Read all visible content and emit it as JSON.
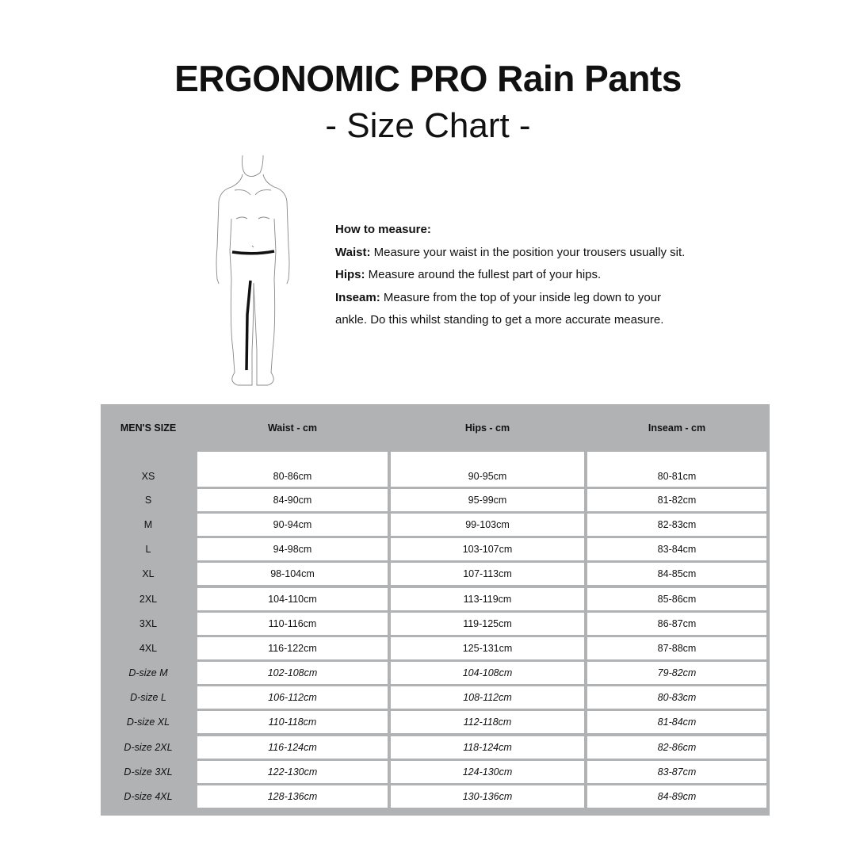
{
  "title": "ERGONOMIC PRO Rain Pants",
  "subtitle": "-  Size Chart -",
  "how_to": {
    "heading": "How to measure:",
    "waist_label": "Waist:",
    "waist_text": " Measure your waist in the position your trousers usually sit.",
    "hips_label": "Hips:",
    "hips_text": " Measure around the fullest part of your hips.",
    "inseam_label": "Inseam:",
    "inseam_text": " Measure from the top of your inside leg down to your",
    "inseam_text2": "ankle. Do this whilst standing to get a more accurate measure."
  },
  "table": {
    "headers": [
      "MEN'S SIZE",
      "Waist - cm",
      "Hips - cm",
      "Inseam - cm"
    ],
    "rows": [
      [
        "XS",
        "80-86cm",
        "90-95cm",
        "80-81cm"
      ],
      [
        "S",
        "84-90cm",
        "95-99cm",
        "81-82cm"
      ],
      [
        "M",
        "90-94cm",
        "99-103cm",
        "82-83cm"
      ],
      [
        "L",
        "94-98cm",
        "103-107cm",
        "83-84cm"
      ],
      [
        "XL",
        "98-104cm",
        "107-113cm",
        "84-85cm"
      ],
      [
        "2XL",
        "104-110cm",
        "113-119cm",
        "85-86cm"
      ],
      [
        "3XL",
        "110-116cm",
        "119-125cm",
        "86-87cm"
      ],
      [
        "4XL",
        "116-122cm",
        "125-131cm",
        "87-88cm"
      ],
      [
        "D-size M",
        "102-108cm",
        "104-108cm",
        "79-82cm"
      ],
      [
        "D-size L",
        "106-112cm",
        "108-112cm",
        "80-83cm"
      ],
      [
        "D-size XL",
        "110-118cm",
        "112-118cm",
        "81-84cm"
      ],
      [
        "D-size 2XL",
        "116-124cm",
        "118-124cm",
        "82-86cm"
      ],
      [
        "D-size 3XL",
        "122-130cm",
        "124-130cm",
        "83-87cm"
      ],
      [
        "D-size 4XL",
        "128-136cm",
        "130-136cm",
        "84-89cm"
      ]
    ]
  }
}
